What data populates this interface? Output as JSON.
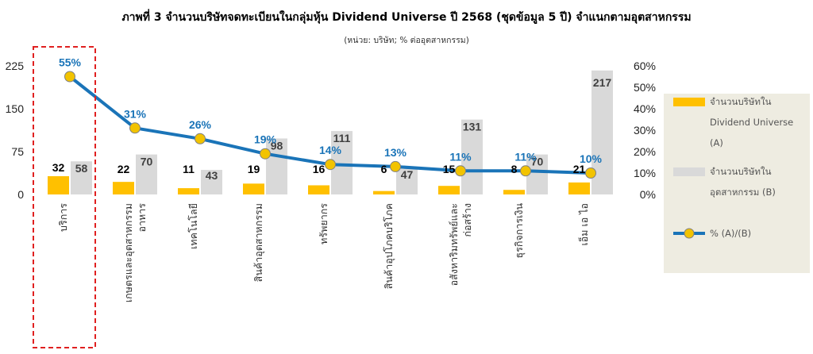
{
  "chart_data": {
    "type": "bar",
    "title": "ภาพที่ 3 จำนวนบริษัทจดทะเบียนในกลุ่มหุ้น Dividend Universe ปี 2568 (ชุดข้อมูล 5 ปี) จำแนกตามอุตสาหกรรม",
    "subtitle": "(หน่วย: บริษัท; % ต่ออุตสาหกรรม)",
    "categories": [
      [
        "บริการ"
      ],
      [
        "เกษตรและอุตสาหกรรม",
        "อาหาร"
      ],
      [
        "เทคโนโลยี"
      ],
      [
        "สินค้าอุตสาหกรรม"
      ],
      [
        "ทรัพยากร"
      ],
      [
        "สินค้าอุปโภคบริโภค"
      ],
      [
        "อสังหาริมทรัพย์และ",
        "ก่อสร้าง"
      ],
      [
        "ธุรกิจการเงิน"
      ],
      [
        "เอ็ม เอ ไอ"
      ]
    ],
    "series": [
      {
        "name": "จำนวนบริษัทใน Dividend Universe (A)",
        "values": [
          32,
          22,
          11,
          19,
          16,
          6,
          15,
          8,
          21
        ],
        "color": "#ffc000"
      },
      {
        "name": "จำนวนบริษัทใน อุตสาหกรรม (B)",
        "values": [
          58,
          70,
          43,
          98,
          111,
          47,
          131,
          70,
          217
        ],
        "color": "#d9d9d9"
      },
      {
        "name": "% (A)/(B)",
        "values": [
          55,
          31,
          26,
          19,
          14,
          13,
          11,
          11,
          10
        ],
        "color": "#1a74b8",
        "marker_color": "#f2c300"
      }
    ],
    "y_left": {
      "ticks": [
        0,
        75,
        150,
        225
      ],
      "ylim": [
        0,
        225
      ]
    },
    "y_right": {
      "ticks": [
        "0%",
        "10%",
        "20%",
        "30%",
        "40%",
        "50%",
        "60%"
      ],
      "ylim": [
        0,
        60
      ]
    },
    "highlight_category": "บริการ",
    "legend": {
      "position": "right",
      "background": "#eeece1",
      "items": [
        {
          "lines": [
            "จำนวนบริษัทใน",
            "Dividend Universe",
            "(A)"
          ],
          "swatch": "bar",
          "color": "#ffc000"
        },
        {
          "lines": [
            "จำนวนบริษัทใน",
            "อุตสาหกรรม (B)"
          ],
          "swatch": "bar",
          "color": "#d9d9d9"
        },
        {
          "lines": [
            "% (A)/(B)"
          ],
          "swatch": "line",
          "color": "#1a74b8"
        }
      ]
    }
  }
}
